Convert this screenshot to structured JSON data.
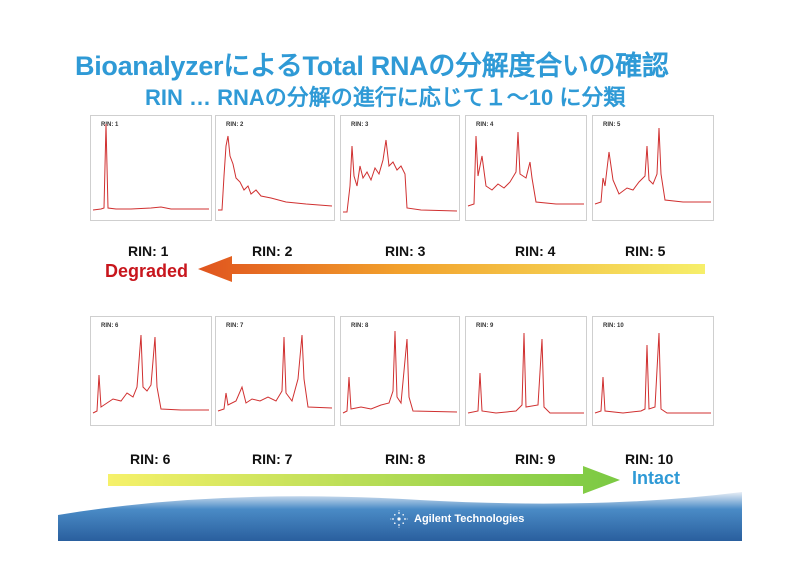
{
  "title": "BioanalyzerによるTotal RNAの分解度合いの確認",
  "subtitle": "RIN … RNAの分解の進行に応じて１〜10 に分類",
  "row1": {
    "labels": [
      "RIN: 1",
      "RIN: 2",
      "RIN: 3",
      "RIN: 4",
      "RIN: 5"
    ],
    "end_label": "Degraded"
  },
  "row2": {
    "labels": [
      "RIN: 6",
      "RIN: 7",
      "RIN: 8",
      "RIN: 9",
      "RIN: 10"
    ],
    "end_label": "Intact"
  },
  "panels": [
    "RIN: 1",
    "RIN: 2",
    "RIN: 3",
    "RIN: 4",
    "RIN: 5",
    "RIN: 6",
    "RIN: 7",
    "RIN: 8",
    "RIN: 9",
    "RIN: 10"
  ],
  "footer": {
    "brand": "Agilent Technologies",
    "logo_icon": "agilent-spark-icon"
  },
  "colors": {
    "title": "#2f9ad6",
    "trace": "#d03030",
    "degraded": "#c8161d",
    "intact": "#2f9ad6",
    "footer": "#2e6fae"
  }
}
